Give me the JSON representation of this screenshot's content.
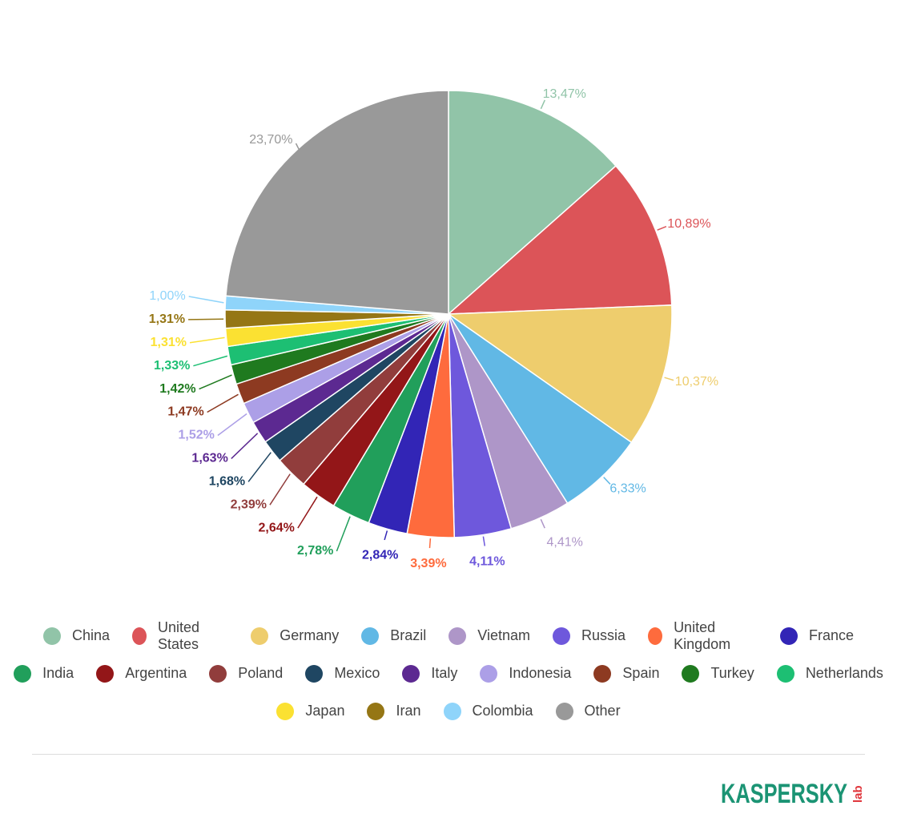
{
  "chart_data": {
    "type": "pie",
    "slices": [
      {
        "name": "China",
        "value": 13.47,
        "label": "13,47%",
        "color": "#91c4a8"
      },
      {
        "name": "United States",
        "value": 10.89,
        "label": "10,89%",
        "color": "#dc5458"
      },
      {
        "name": "Germany",
        "value": 10.37,
        "label": "10,37%",
        "color": "#eecd6d"
      },
      {
        "name": "Brazil",
        "value": 6.33,
        "label": "6,33%",
        "color": "#61b8e5"
      },
      {
        "name": "Vietnam",
        "value": 4.41,
        "label": "4,41%",
        "color": "#ae96c8"
      },
      {
        "name": "Russia",
        "value": 4.11,
        "label": "4,11%",
        "color": "#6e58dc"
      },
      {
        "name": "United Kingdom",
        "value": 3.39,
        "label": "3,39%",
        "color": "#fe6b3d"
      },
      {
        "name": "France",
        "value": 2.84,
        "label": "2,84%",
        "color": "#3225b6"
      },
      {
        "name": "India",
        "value": 2.78,
        "label": "2,78%",
        "color": "#219f5b"
      },
      {
        "name": "Argentina",
        "value": 2.64,
        "label": "2,64%",
        "color": "#931618"
      },
      {
        "name": "Poland",
        "value": 2.39,
        "label": "2,39%",
        "color": "#913d3c"
      },
      {
        "name": "Mexico",
        "value": 1.68,
        "label": "1,68%",
        "color": "#1f4662"
      },
      {
        "name": "Italy",
        "value": 1.63,
        "label": "1,63%",
        "color": "#5c2991"
      },
      {
        "name": "Indonesia",
        "value": 1.52,
        "label": "1,52%",
        "color": "#ac9fe7"
      },
      {
        "name": "Spain",
        "value": 1.47,
        "label": "1,47%",
        "color": "#8d3a21"
      },
      {
        "name": "Turkey",
        "value": 1.42,
        "label": "1,42%",
        "color": "#1f7a1f"
      },
      {
        "name": "Netherlands",
        "value": 1.33,
        "label": "1,33%",
        "color": "#1dbf73"
      },
      {
        "name": "Japan",
        "value": 1.31,
        "label": "1,31%",
        "color": "#fbe132"
      },
      {
        "name": "Iran",
        "value": 1.31,
        "label": "1,31%",
        "color": "#957615"
      },
      {
        "name": "Colombia",
        "value": 1.0,
        "label": "1,00%",
        "color": "#8fd4fa"
      },
      {
        "name": "Other",
        "value": 23.7,
        "label": "23,70%",
        "color": "#999999"
      }
    ]
  },
  "logo": {
    "text": "KASPERSKY",
    "suffix": "lab",
    "color": "#1b9474",
    "accent": "#e0353b"
  }
}
